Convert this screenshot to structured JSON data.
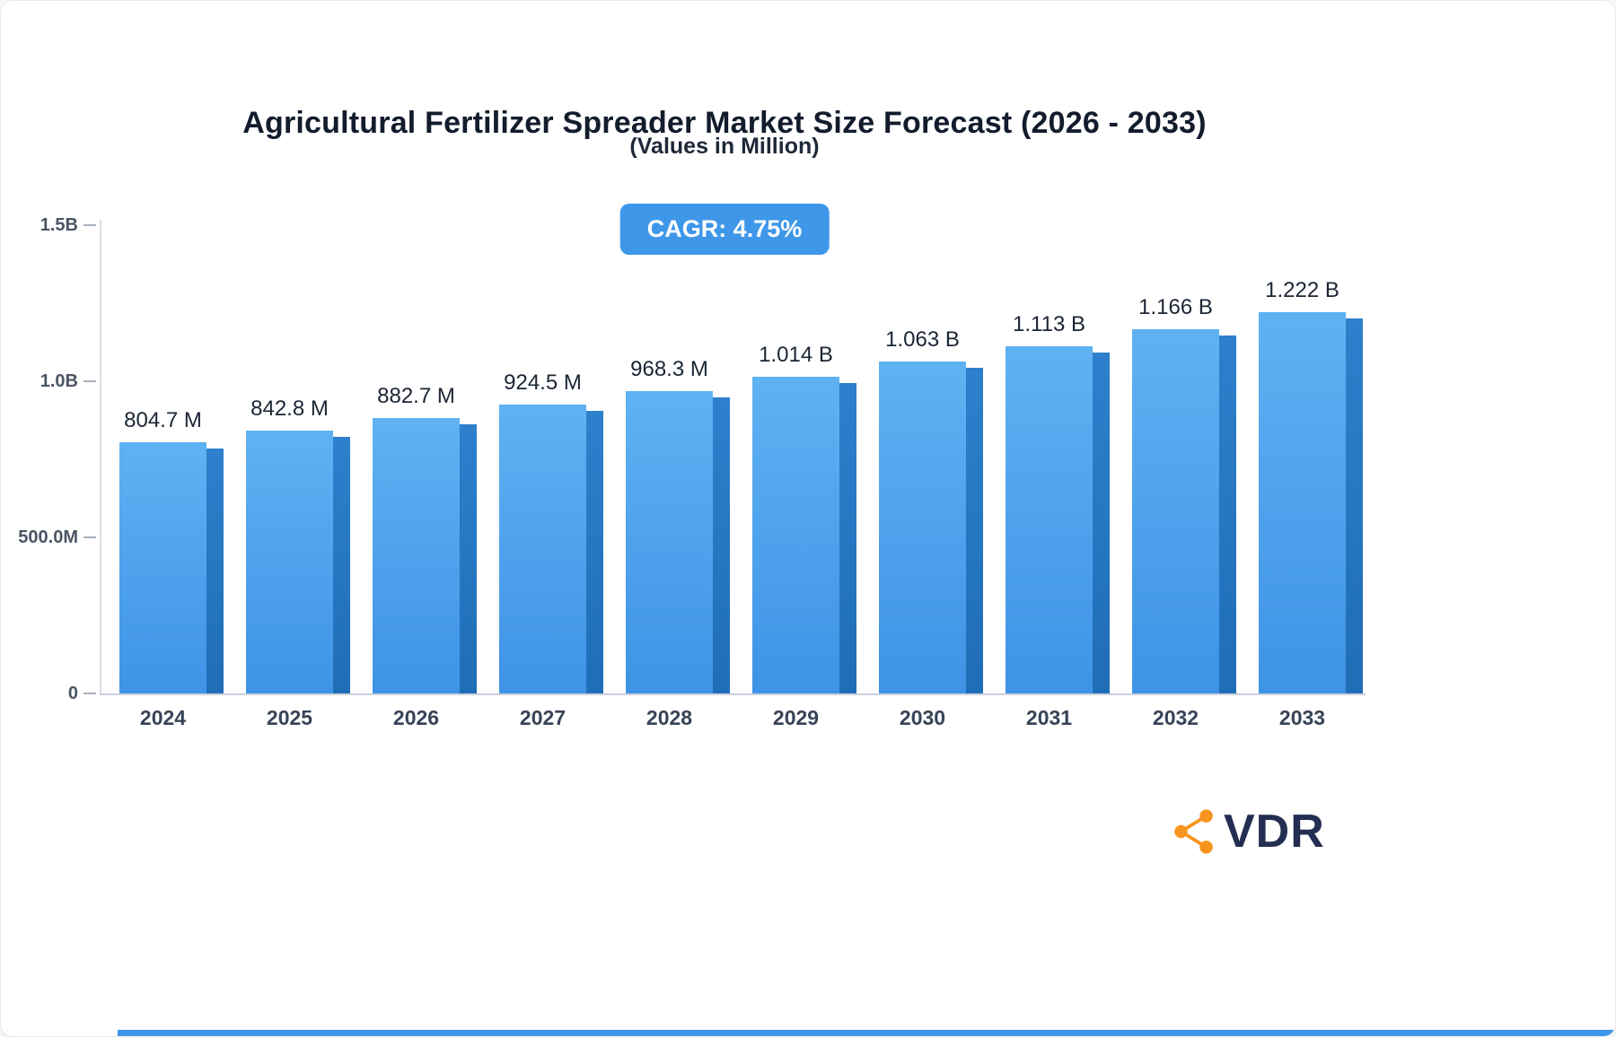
{
  "header": {
    "title": "Agricultural Fertilizer Spreader Market Size Forecast (2026 - 2033)",
    "subtitle": "(Values in Million)",
    "cagr_badge": "CAGR: 4.75%"
  },
  "logo": {
    "text": "VDR",
    "icon": "network-nodes-icon",
    "icon_color": "#f7941d",
    "text_color": "#232e52"
  },
  "colors": {
    "bar_front_top": "#5fb2f2",
    "bar_front_bottom": "#3e93e6",
    "bar_side": "#1f6db6",
    "badge_bg": "#3f97e9",
    "accent_line": "#3e96e8",
    "title_color": "#121c2d",
    "axis_text": "#4b5565"
  },
  "chart_data": {
    "type": "bar",
    "title": "Agricultural Fertilizer Spreader Market Size Forecast (2026 - 2033)",
    "subtitle": "(Values in Million)",
    "annotation": "CAGR: 4.75%",
    "unit": "Million USD",
    "categories": [
      "2024",
      "2025",
      "2026",
      "2027",
      "2028",
      "2029",
      "2030",
      "2031",
      "2032",
      "2033"
    ],
    "values": [
      804.7,
      842.8,
      882.7,
      924.5,
      968.3,
      1014,
      1063,
      1113,
      1166,
      1222
    ],
    "value_labels": [
      "804.7 M",
      "842.8 M",
      "882.7 M",
      "924.5 M",
      "968.3 M",
      "1.014 B",
      "1.063 B",
      "1.113 B",
      "1.166 B",
      "1.222 B"
    ],
    "xlabel": "",
    "ylabel": "",
    "ylim": [
      0,
      1500
    ],
    "yticks": [
      {
        "value": 0,
        "label": "0"
      },
      {
        "value": 500,
        "label": "500.0M"
      },
      {
        "value": 1000,
        "label": "1.0B"
      },
      {
        "value": 1500,
        "label": "1.5B"
      }
    ],
    "grid": false,
    "legend": false
  }
}
